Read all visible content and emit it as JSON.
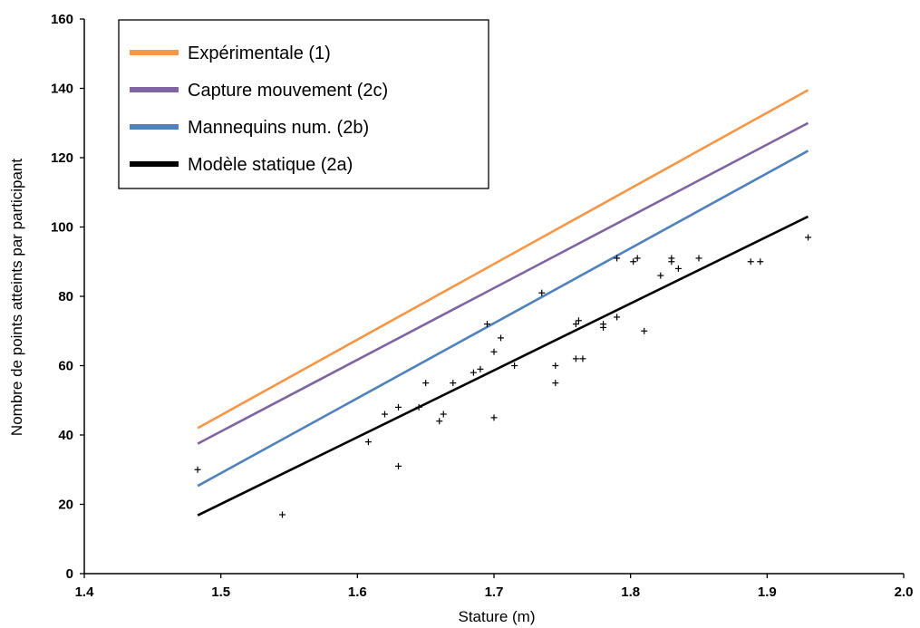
{
  "chart_data": {
    "type": "scatter",
    "xlabel": "Stature (m)",
    "ylabel": "Nombre de points atteints par participant",
    "xlim": [
      1.4,
      2.0
    ],
    "ylim": [
      0,
      160
    ],
    "x_ticks": [
      1.4,
      1.5,
      1.6,
      1.7,
      1.8,
      1.9,
      2.0
    ],
    "x_tick_labels": [
      "1.4",
      "1.5",
      "1.6",
      "1.7",
      "1.8",
      "1.9",
      "2.0"
    ],
    "y_ticks": [
      0,
      20,
      40,
      60,
      80,
      100,
      120,
      140,
      160
    ],
    "y_tick_labels": [
      "0",
      "20",
      "40",
      "60",
      "80",
      "100",
      "120",
      "140",
      "160"
    ],
    "grid": false,
    "legend_position": "top-left",
    "lines": [
      {
        "name": "Expérimentale (1)",
        "color": "#F79646",
        "x": [
          1.483,
          1.93
        ],
        "y": [
          42,
          139.5
        ]
      },
      {
        "name": "Capture mouvement (2c)",
        "color": "#8064A2",
        "x": [
          1.483,
          1.93
        ],
        "y": [
          37.5,
          130
        ]
      },
      {
        "name": "Mannequins num. (2b)",
        "color": "#4F81BD",
        "x": [
          1.483,
          1.93
        ],
        "y": [
          25.3,
          122
        ]
      },
      {
        "name": "Modèle statique (2a)",
        "color": "#000000",
        "x": [
          1.483,
          1.93
        ],
        "y": [
          16.8,
          103
        ]
      }
    ],
    "points": [
      {
        "x": 1.483,
        "y": 30
      },
      {
        "x": 1.545,
        "y": 17
      },
      {
        "x": 1.608,
        "y": 38
      },
      {
        "x": 1.62,
        "y": 46
      },
      {
        "x": 1.63,
        "y": 48
      },
      {
        "x": 1.63,
        "y": 31
      },
      {
        "x": 1.645,
        "y": 48
      },
      {
        "x": 1.65,
        "y": 55
      },
      {
        "x": 1.66,
        "y": 44
      },
      {
        "x": 1.663,
        "y": 46
      },
      {
        "x": 1.67,
        "y": 55
      },
      {
        "x": 1.685,
        "y": 58
      },
      {
        "x": 1.69,
        "y": 59
      },
      {
        "x": 1.695,
        "y": 72
      },
      {
        "x": 1.7,
        "y": 64
      },
      {
        "x": 1.7,
        "y": 45
      },
      {
        "x": 1.705,
        "y": 68
      },
      {
        "x": 1.715,
        "y": 60
      },
      {
        "x": 1.735,
        "y": 81
      },
      {
        "x": 1.745,
        "y": 60
      },
      {
        "x": 1.745,
        "y": 55
      },
      {
        "x": 1.76,
        "y": 62
      },
      {
        "x": 1.76,
        "y": 72
      },
      {
        "x": 1.762,
        "y": 73
      },
      {
        "x": 1.765,
        "y": 62
      },
      {
        "x": 1.78,
        "y": 71
      },
      {
        "x": 1.78,
        "y": 72
      },
      {
        "x": 1.79,
        "y": 74
      },
      {
        "x": 1.79,
        "y": 91
      },
      {
        "x": 1.802,
        "y": 90
      },
      {
        "x": 1.805,
        "y": 91
      },
      {
        "x": 1.81,
        "y": 70
      },
      {
        "x": 1.822,
        "y": 86
      },
      {
        "x": 1.83,
        "y": 90
      },
      {
        "x": 1.83,
        "y": 91
      },
      {
        "x": 1.835,
        "y": 88
      },
      {
        "x": 1.85,
        "y": 91
      },
      {
        "x": 1.888,
        "y": 90
      },
      {
        "x": 1.895,
        "y": 90
      },
      {
        "x": 1.93,
        "y": 97
      }
    ]
  }
}
